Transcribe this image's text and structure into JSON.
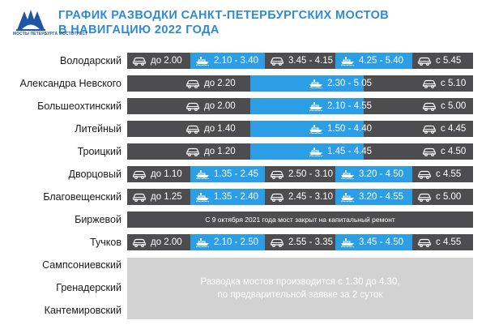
{
  "header": {
    "logo_text": "МОСТЫ ПЕТЕРБУРГА МОСТОТРЕСТ",
    "title_line1": "ГРАФИК РАЗВОДКИ САНКТ-ПЕТЕРБУРГСКИХ МОСТОВ",
    "title_line2": "В НАВИГАЦИЮ 2022 ГОДА"
  },
  "colors": {
    "title": "#2e8ad3",
    "bar": "#4d4d4f",
    "blue_segment": "#2c9ee6",
    "panel": "#d2d2d2"
  },
  "icons": {
    "car": "car-icon",
    "ship": "ship-icon"
  },
  "bridges": [
    {
      "name": "Володарский",
      "segments": [
        {
          "mode": "car",
          "text": "до 2.00"
        },
        {
          "mode": "ship",
          "text": "2.10 - 3.40"
        },
        {
          "mode": "car",
          "text": "3.45 - 4.15"
        },
        {
          "mode": "ship",
          "text": "4.25 - 5.40"
        },
        {
          "mode": "car",
          "text": "с 5.45"
        }
      ]
    },
    {
      "name": "Александра Невского",
      "segments": [
        {
          "mode": "car",
          "text": "до 2.20"
        },
        {
          "mode": "ship",
          "text": "2.30 - 5.05"
        },
        {
          "mode": "car",
          "text": "с 5.10"
        }
      ]
    },
    {
      "name": "Большеохтинский",
      "segments": [
        {
          "mode": "car",
          "text": "до 2.00"
        },
        {
          "mode": "ship",
          "text": "2.10 - 4.55"
        },
        {
          "mode": "car",
          "text": "с 5.00"
        }
      ]
    },
    {
      "name": "Литейный",
      "segments": [
        {
          "mode": "car",
          "text": "до 1.40"
        },
        {
          "mode": "ship",
          "text": "1.50 - 4.40"
        },
        {
          "mode": "car",
          "text": "с 4.45"
        }
      ]
    },
    {
      "name": "Троицкий",
      "segments": [
        {
          "mode": "car",
          "text": "до 1.20"
        },
        {
          "mode": "ship",
          "text": "1.45 - 4.45"
        },
        {
          "mode": "car",
          "text": "с 4.50"
        }
      ]
    },
    {
      "name": "Дворцовый",
      "segments": [
        {
          "mode": "car",
          "text": "до 1.10"
        },
        {
          "mode": "ship",
          "text": "1.35 - 2.45"
        },
        {
          "mode": "car",
          "text": "2.50 - 3.10"
        },
        {
          "mode": "ship",
          "text": "3.20 - 4.50"
        },
        {
          "mode": "car",
          "text": "с 4.55"
        }
      ]
    },
    {
      "name": "Благовещенский",
      "segments": [
        {
          "mode": "car",
          "text": "до 1.25"
        },
        {
          "mode": "ship",
          "text": "1.35 - 2.40"
        },
        {
          "mode": "car",
          "text": "2.45 - 3.10"
        },
        {
          "mode": "ship",
          "text": "3.20 - 4.55"
        },
        {
          "mode": "car",
          "text": "с 5.00"
        }
      ]
    },
    {
      "name": "Биржевой",
      "notice": "С 9 октября 2021 года мост закрыт на капитальный ремонт",
      "segments": []
    },
    {
      "name": "Тучков",
      "segments": [
        {
          "mode": "car",
          "text": "до 2.00"
        },
        {
          "mode": "ship",
          "text": "2.10 - 2.50"
        },
        {
          "mode": "car",
          "text": "2.55 - 3.35"
        },
        {
          "mode": "ship",
          "text": "3.45 - 4.50"
        },
        {
          "mode": "car",
          "text": "с 4.55"
        }
      ]
    }
  ],
  "on_request": {
    "bridges": [
      "Сампсониевский",
      "Гренадерский",
      "Кантемировский"
    ],
    "text_line1": "Разводка мостов производится с 1.30 до 4.30,",
    "text_line2": "по предварительной заявке за 2 суток"
  }
}
